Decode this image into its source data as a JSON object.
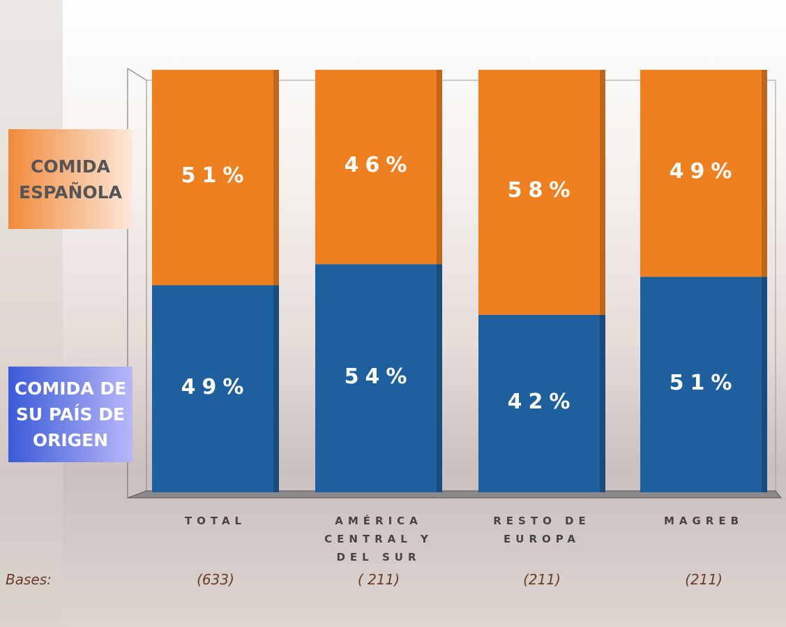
{
  "chart_data": {
    "type": "stacked_bar",
    "categories": [
      "TOTAL",
      "AMÉRICA CENTRAL Y DEL SUR",
      "RESTO DE EUROPA",
      "MAGREB"
    ],
    "series": [
      {
        "name": "COMIDA DE SU PAÍS DE ORIGEN",
        "color": "#1e5f9e",
        "values": [
          49,
          54,
          42,
          51
        ],
        "value_labels": [
          "49%",
          "54%",
          "42%",
          "51%"
        ]
      },
      {
        "name": "COMIDA ESPAÑOLA",
        "color": "#ef8020",
        "values": [
          51,
          46,
          58,
          49
        ],
        "value_labels": [
          "51%",
          "46%",
          "58%",
          "49%"
        ]
      }
    ],
    "ylim": [
      0,
      100
    ],
    "bases_label": "Bases:",
    "bases": [
      "(633)",
      "( 211)",
      "(211)",
      "(211)"
    ]
  }
}
